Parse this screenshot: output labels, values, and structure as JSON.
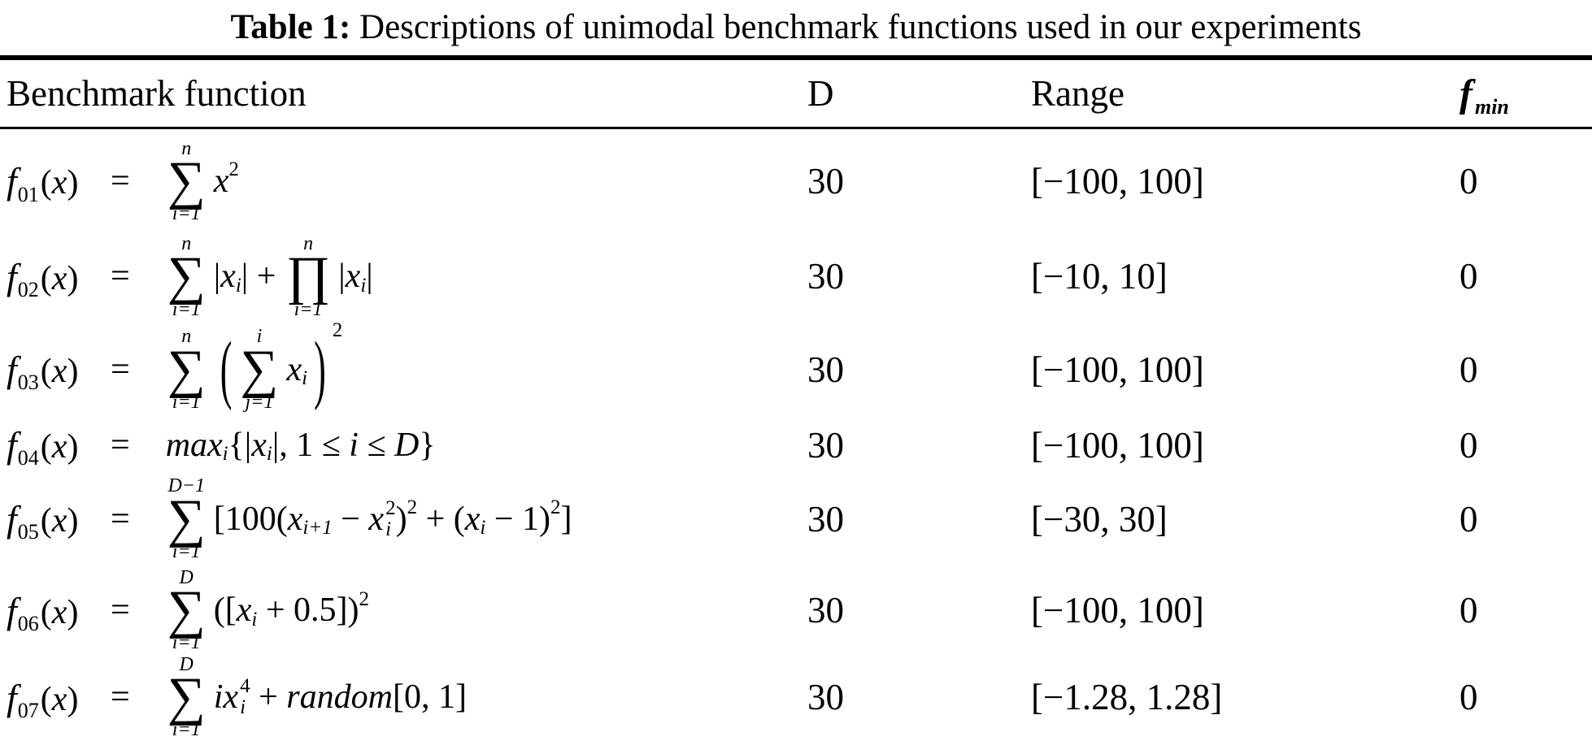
{
  "title": {
    "label": "Table 1:",
    "text": " Descriptions of unimodal benchmark functions used in our experiments"
  },
  "columns": {
    "benchmark": "Benchmark function",
    "dimension": "D",
    "range": "Range",
    "fmin_symbol": "f",
    "fmin_subscript": "min"
  },
  "rows": [
    {
      "fsym": "f",
      "fsub": "01",
      "arg": "(x)",
      "equals": "=",
      "formula": [
        {
          "op": "∑",
          "over": "n",
          "under": "i=1"
        },
        {
          "text": "x",
          "italic": true,
          "sup": "2"
        }
      ],
      "dimension": "30",
      "range": "[−100, 100]",
      "fmin": "0"
    },
    {
      "fsym": "f",
      "fsub": "02",
      "arg": "(x)",
      "equals": "=",
      "formula": [
        {
          "op": "∑",
          "over": "n",
          "under": "i=1"
        },
        {
          "text": "|"
        },
        {
          "text": "x",
          "italic": true,
          "sub": "i"
        },
        {
          "text": "| + "
        },
        {
          "op": "∏",
          "over": "n",
          "under": "i=1"
        },
        {
          "text": "|"
        },
        {
          "text": "x",
          "italic": true,
          "sub": "i"
        },
        {
          "text": "|"
        }
      ],
      "dimension": "30",
      "range": "[−10, 10]",
      "fmin": "0"
    },
    {
      "fsym": "f",
      "fsub": "03",
      "arg": "(x)",
      "equals": "=",
      "formula": [
        {
          "op": "∑",
          "over": "n",
          "under": "i=1"
        },
        {
          "group": {
            "open": "(",
            "close": ")",
            "sup": "2",
            "content": [
              {
                "op": "∑",
                "over": "i",
                "under": "j=1"
              },
              {
                "text": "x",
                "italic": true,
                "sub": "i"
              }
            ]
          }
        }
      ],
      "dimension": "30",
      "range": "[−100, 100]",
      "fmin": "0"
    },
    {
      "fsym": "f",
      "fsub": "04",
      "arg": "(x)",
      "equals": "=",
      "formula": [
        {
          "text": "max",
          "italic": true,
          "sub": "i"
        },
        {
          "text": "{|"
        },
        {
          "text": "x",
          "italic": true,
          "sub": "i"
        },
        {
          "text": "|, 1 ≤ "
        },
        {
          "text": "i",
          "italic": true
        },
        {
          "text": " ≤ "
        },
        {
          "text": "D",
          "italic": true
        },
        {
          "text": "}"
        }
      ],
      "dimension": "30",
      "range": "[−100, 100]",
      "fmin": "0"
    },
    {
      "fsym": "f",
      "fsub": "05",
      "arg": "(x)",
      "equals": "=",
      "formula": [
        {
          "op": "∑",
          "over": "D−1",
          "under": "i=1"
        },
        {
          "text": "[100("
        },
        {
          "text": "x",
          "italic": true,
          "sub": "i+1"
        },
        {
          "text": " − "
        },
        {
          "text": "x",
          "italic": true,
          "sub": "i",
          "sup": "2"
        },
        {
          "text": ")",
          "sup": "2"
        },
        {
          "text": " + ("
        },
        {
          "text": "x",
          "italic": true,
          "sub": "i"
        },
        {
          "text": " − 1)",
          "sup": "2"
        },
        {
          "text": "]"
        }
      ],
      "dimension": "30",
      "range": "[−30, 30]",
      "fmin": "0"
    },
    {
      "fsym": "f",
      "fsub": "06",
      "arg": "(x)",
      "equals": "=",
      "formula": [
        {
          "op": "∑",
          "over": "D",
          "under": "i=1"
        },
        {
          "text": "(["
        },
        {
          "text": "x",
          "italic": true,
          "sub": "i"
        },
        {
          "text": " + 0.5])",
          "sup": "2"
        }
      ],
      "dimension": "30",
      "range": "[−100, 100]",
      "fmin": "0"
    },
    {
      "fsym": "f",
      "fsub": "07",
      "arg": "(x)",
      "equals": "=",
      "formula": [
        {
          "op": "∑",
          "over": "D",
          "under": "i=1"
        },
        {
          "text": "i",
          "italic": true
        },
        {
          "text": "x",
          "italic": true,
          "sub": "i",
          "sup": "4"
        },
        {
          "text": " + "
        },
        {
          "text": "random",
          "italic": true
        },
        {
          "text": "[0, 1]"
        }
      ],
      "dimension": "30",
      "range": "[−1.28, 1.28]",
      "fmin": "0"
    }
  ]
}
